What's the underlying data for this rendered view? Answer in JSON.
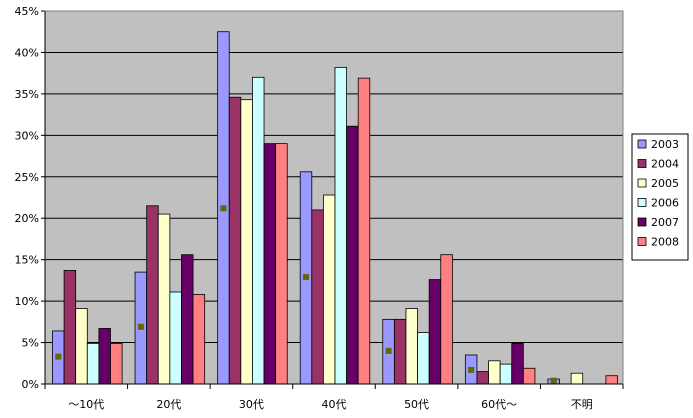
{
  "chart_data": {
    "type": "bar",
    "title": "",
    "xlabel": "",
    "ylabel": "",
    "ylim": [
      0,
      45
    ],
    "y_tick_labels": [
      "0%",
      "5%",
      "10%",
      "15%",
      "20%",
      "25%",
      "30%",
      "35%",
      "40%",
      "45%"
    ],
    "y_ticks": [
      0,
      5,
      10,
      15,
      20,
      25,
      30,
      35,
      40,
      45
    ],
    "grid": true,
    "legend_position": "right",
    "plot_background": "#c0c0c0",
    "categories": [
      "〜10代",
      "20代",
      "30代",
      "40代",
      "50代",
      "60代〜",
      "不明"
    ],
    "series": [
      {
        "name": "2003",
        "color": "#9999ff",
        "values": [
          6.4,
          13.5,
          42.5,
          25.6,
          7.8,
          3.5,
          0.6
        ]
      },
      {
        "name": "2004",
        "color": "#993366",
        "values": [
          13.7,
          21.5,
          34.6,
          21.0,
          7.8,
          1.5,
          0.0
        ]
      },
      {
        "name": "2005",
        "color": "#ffffcc",
        "values": [
          9.1,
          20.5,
          34.3,
          22.8,
          9.1,
          2.8,
          1.3
        ]
      },
      {
        "name": "2006",
        "color": "#ccffff",
        "values": [
          4.9,
          11.1,
          37.0,
          38.2,
          6.2,
          2.4,
          0.0
        ]
      },
      {
        "name": "2007",
        "color": "#660066",
        "values": [
          6.7,
          15.6,
          29.0,
          31.1,
          12.6,
          4.9,
          0.0
        ]
      },
      {
        "name": "2008",
        "color": "#ff8080",
        "values": [
          4.9,
          10.8,
          29.0,
          36.9,
          15.6,
          1.9,
          1.0
        ]
      }
    ],
    "markers": {
      "color": "#666600",
      "values": [
        3.3,
        6.9,
        21.2,
        12.9,
        4.0,
        1.7,
        0.4
      ]
    }
  }
}
